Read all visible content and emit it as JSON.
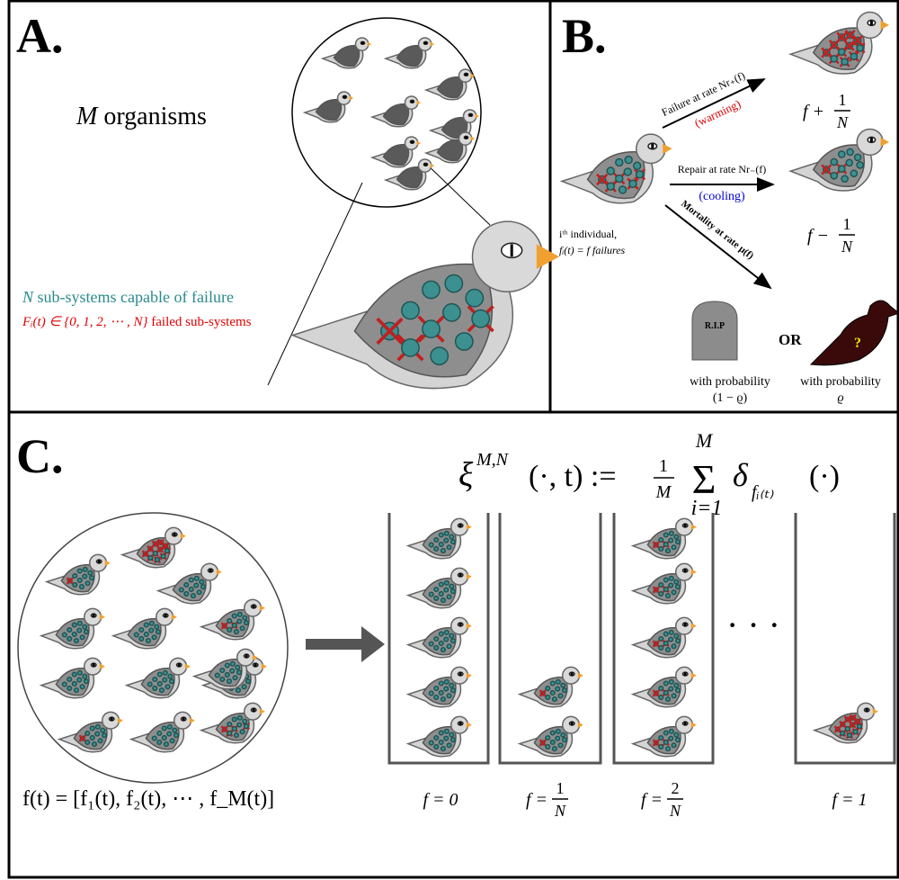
{
  "panel_a": {
    "label": "A.",
    "organisms": {
      "var": "M",
      "text": " organisms"
    },
    "subsystems": {
      "var": "N",
      "text": " sub-systems capable of failure"
    },
    "failed": {
      "expr": "Fᵢ(t) ∈ {0, 1, 2, ⋯ , N}",
      "text": " failed sub-systems"
    }
  },
  "panel_b": {
    "label": "B.",
    "failure_rate": "Failure at rate Nr₊(f)",
    "warming": "(warming)",
    "repair_rate": "Repair at rate Nr₋(f)",
    "cooling": "(cooling)",
    "mortality": "Mortality at rate μ(f)",
    "individual": "iᵗʰ individual,",
    "failures": "fᵢ(t) = f failures",
    "plus_label": {
      "lhs": "f +",
      "num": "1",
      "den": "N"
    },
    "minus_label": {
      "lhs": "f −",
      "num": "1",
      "den": "N"
    },
    "rip": "R.I.P",
    "or": "OR",
    "question": "?",
    "death": {
      "text": "with probability",
      "value": "(1 − ϱ)"
    },
    "survival": {
      "text": "with probability",
      "value": "ϱ"
    }
  },
  "panel_c": {
    "label": "C.",
    "formula": {
      "xi": "ξ",
      "sup": "M,N",
      "args": "(·, t) :=",
      "num": "1",
      "den": "M",
      "sum": "Σ",
      "sum_top": "M",
      "sum_bottom": "i=1",
      "delta": "δ",
      "sub": "fᵢ₍ₜ₎",
      "tail": "(·)"
    },
    "vector": "f(t) = [f₁(t), f₂(t), ⋯ , f_M(t)]",
    "ellipsis": "· · ·",
    "bins": [
      {
        "lhs": "f = 0"
      },
      {
        "lhs": "f =",
        "num": "1",
        "den": "N"
      },
      {
        "lhs": "f =",
        "num": "2",
        "den": "N"
      },
      {
        "lhs": "f = 1"
      }
    ]
  }
}
